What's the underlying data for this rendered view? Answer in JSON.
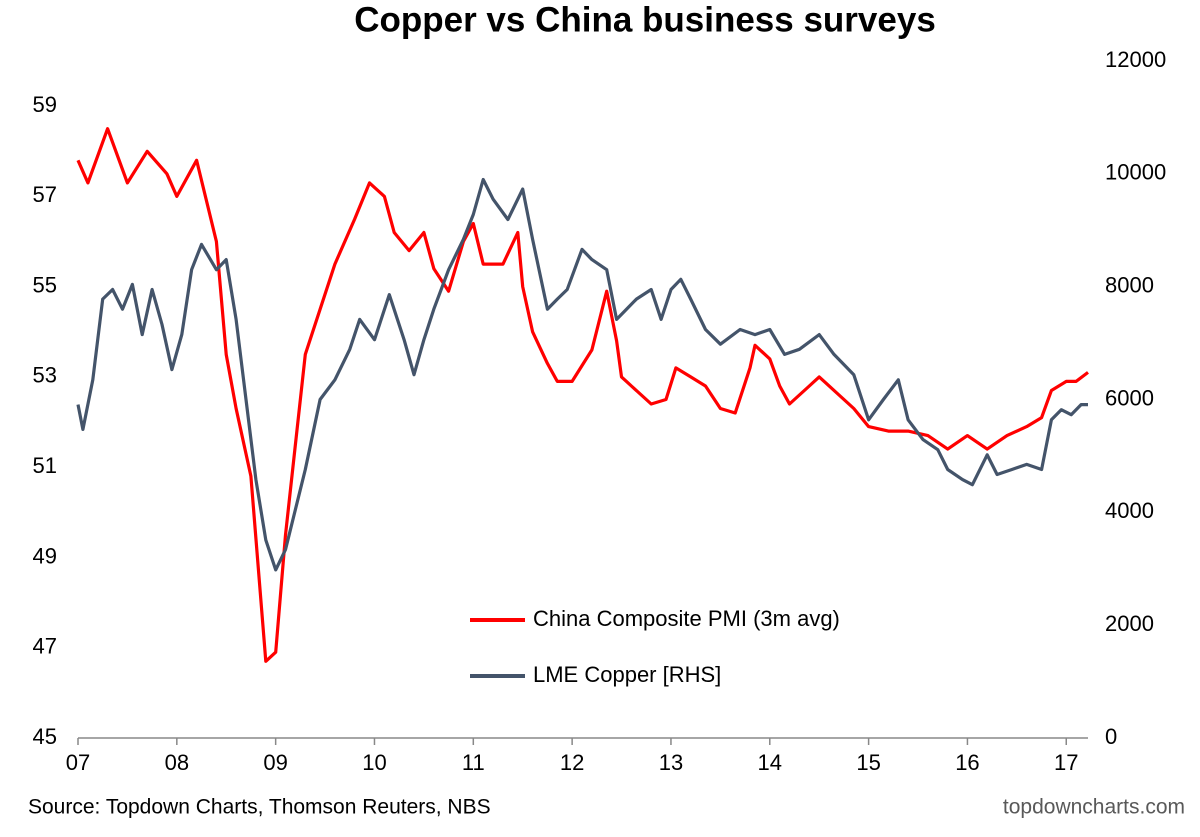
{
  "chart_data": {
    "type": "line",
    "title": "Copper vs China business surveys",
    "source": "Source: Topdown Charts, Thomson Reuters, NBS",
    "watermark": "topdowncharts.com",
    "xlim": [
      7,
      17.22
    ],
    "xticks": [
      {
        "value": 7,
        "label": "07"
      },
      {
        "value": 8,
        "label": "08"
      },
      {
        "value": 9,
        "label": "09"
      },
      10,
      11,
      12,
      13,
      14,
      15,
      16,
      17
    ],
    "ylim": [
      45,
      60
    ],
    "yticks": [
      45,
      47,
      49,
      51,
      53,
      55,
      57,
      59
    ],
    "y2lim": [
      0,
      12000
    ],
    "y2ticks": [
      0,
      2000,
      4000,
      6000,
      8000,
      10000,
      12000
    ],
    "legend_position": "lower center",
    "series": [
      {
        "name": "China Composite PMI (3m avg)",
        "color": "#ff0000",
        "axis": "y",
        "x": [
          7.0,
          7.1,
          7.3,
          7.5,
          7.7,
          7.9,
          8.0,
          8.2,
          8.4,
          8.5,
          8.6,
          8.75,
          8.9,
          9.0,
          9.1,
          9.2,
          9.3,
          9.45,
          9.6,
          9.8,
          9.95,
          10.1,
          10.2,
          10.35,
          10.5,
          10.6,
          10.75,
          10.9,
          11.0,
          11.1,
          11.3,
          11.45,
          11.5,
          11.6,
          11.75,
          11.85,
          12.0,
          12.2,
          12.35,
          12.45,
          12.5,
          12.6,
          12.8,
          12.95,
          13.05,
          13.2,
          13.35,
          13.5,
          13.65,
          13.8,
          13.85,
          14.0,
          14.1,
          14.2,
          14.4,
          14.5,
          14.7,
          14.85,
          15.0,
          15.2,
          15.4,
          15.6,
          15.8,
          16.0,
          16.2,
          16.4,
          16.6,
          16.75,
          16.85,
          17.0,
          17.1,
          17.22
        ],
        "values": [
          57.8,
          57.3,
          58.5,
          57.3,
          58.0,
          57.5,
          57.0,
          57.8,
          56.0,
          53.5,
          52.3,
          50.8,
          46.7,
          46.9,
          49.5,
          51.5,
          53.5,
          54.5,
          55.5,
          56.5,
          57.3,
          57.0,
          56.2,
          55.8,
          56.2,
          55.4,
          54.9,
          56.0,
          56.4,
          55.5,
          55.5,
          56.2,
          55.0,
          54.0,
          53.3,
          52.9,
          52.9,
          53.6,
          54.9,
          53.8,
          53.0,
          52.8,
          52.4,
          52.5,
          53.2,
          53.0,
          52.8,
          52.3,
          52.2,
          53.2,
          53.7,
          53.4,
          52.8,
          52.4,
          52.8,
          53.0,
          52.6,
          52.3,
          51.9,
          51.8,
          51.8,
          51.7,
          51.4,
          51.7,
          51.4,
          51.7,
          51.9,
          52.1,
          52.7,
          52.9,
          52.9,
          53.1
        ]
      },
      {
        "name": "LME Copper [RHS]",
        "color": "#44546a",
        "axis": "y2",
        "x": [
          7.0,
          7.05,
          7.15,
          7.25,
          7.35,
          7.45,
          7.55,
          7.65,
          7.75,
          7.85,
          7.95,
          8.05,
          8.15,
          8.25,
          8.4,
          8.5,
          8.6,
          8.7,
          8.8,
          8.9,
          9.0,
          9.1,
          9.2,
          9.3,
          9.45,
          9.6,
          9.75,
          9.85,
          10.0,
          10.15,
          10.3,
          10.4,
          10.5,
          10.6,
          10.75,
          10.9,
          11.0,
          11.1,
          11.2,
          11.35,
          11.5,
          11.6,
          11.75,
          11.85,
          11.95,
          12.1,
          12.2,
          12.35,
          12.45,
          12.55,
          12.65,
          12.8,
          12.9,
          13.0,
          13.1,
          13.2,
          13.35,
          13.5,
          13.7,
          13.85,
          14.0,
          14.15,
          14.3,
          14.5,
          14.65,
          14.85,
          15.0,
          15.15,
          15.3,
          15.4,
          15.55,
          15.7,
          15.8,
          15.95,
          16.05,
          16.2,
          16.3,
          16.45,
          16.6,
          16.75,
          16.85,
          16.95,
          17.05,
          17.15,
          17.22
        ],
        "values": [
          5910,
          5470,
          6350,
          7780,
          7950,
          7600,
          8040,
          7150,
          7950,
          7330,
          6530,
          7150,
          8300,
          8750,
          8300,
          8480,
          7420,
          6000,
          4580,
          3510,
          2980,
          3340,
          4050,
          4760,
          6000,
          6350,
          6890,
          7420,
          7060,
          7860,
          7060,
          6440,
          7060,
          7600,
          8300,
          8840,
          9280,
          9900,
          9550,
          9190,
          9730,
          8840,
          7600,
          7780,
          7950,
          8660,
          8480,
          8300,
          7420,
          7600,
          7780,
          7950,
          7420,
          7950,
          8130,
          7780,
          7240,
          6980,
          7240,
          7150,
          7240,
          6800,
          6890,
          7150,
          6800,
          6440,
          5640,
          6000,
          6350,
          5640,
          5290,
          5110,
          4760,
          4580,
          4490,
          5020,
          4670,
          4760,
          4850,
          4760,
          5640,
          5820,
          5730,
          5910,
          5910
        ]
      }
    ]
  }
}
